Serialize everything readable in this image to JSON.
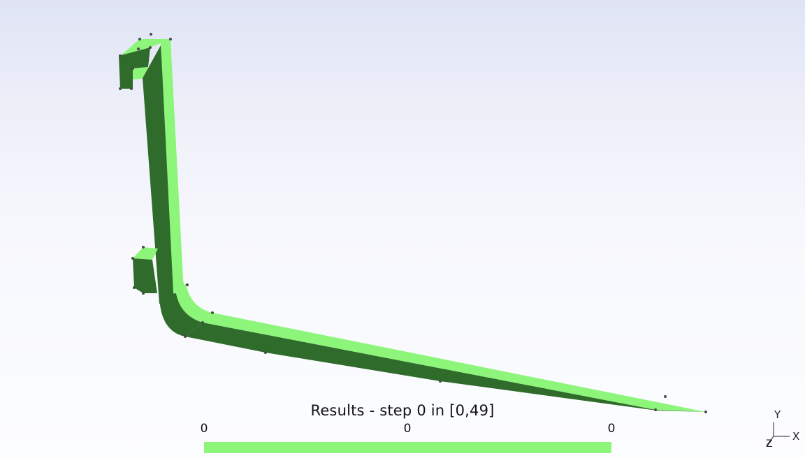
{
  "viewport": {
    "mesh_color_light": "#8cf57a",
    "mesh_color_dark": "#2f6b2a",
    "node_color": "#4a4a4a"
  },
  "legend": {
    "title": "Results - step 0 in [0,49]",
    "tick_left": "0",
    "tick_mid": "0",
    "tick_right": "0",
    "bar_color": "#8cf57a"
  },
  "axes": {
    "y_label": "Y",
    "x_label": "X",
    "z_label": "Z"
  }
}
